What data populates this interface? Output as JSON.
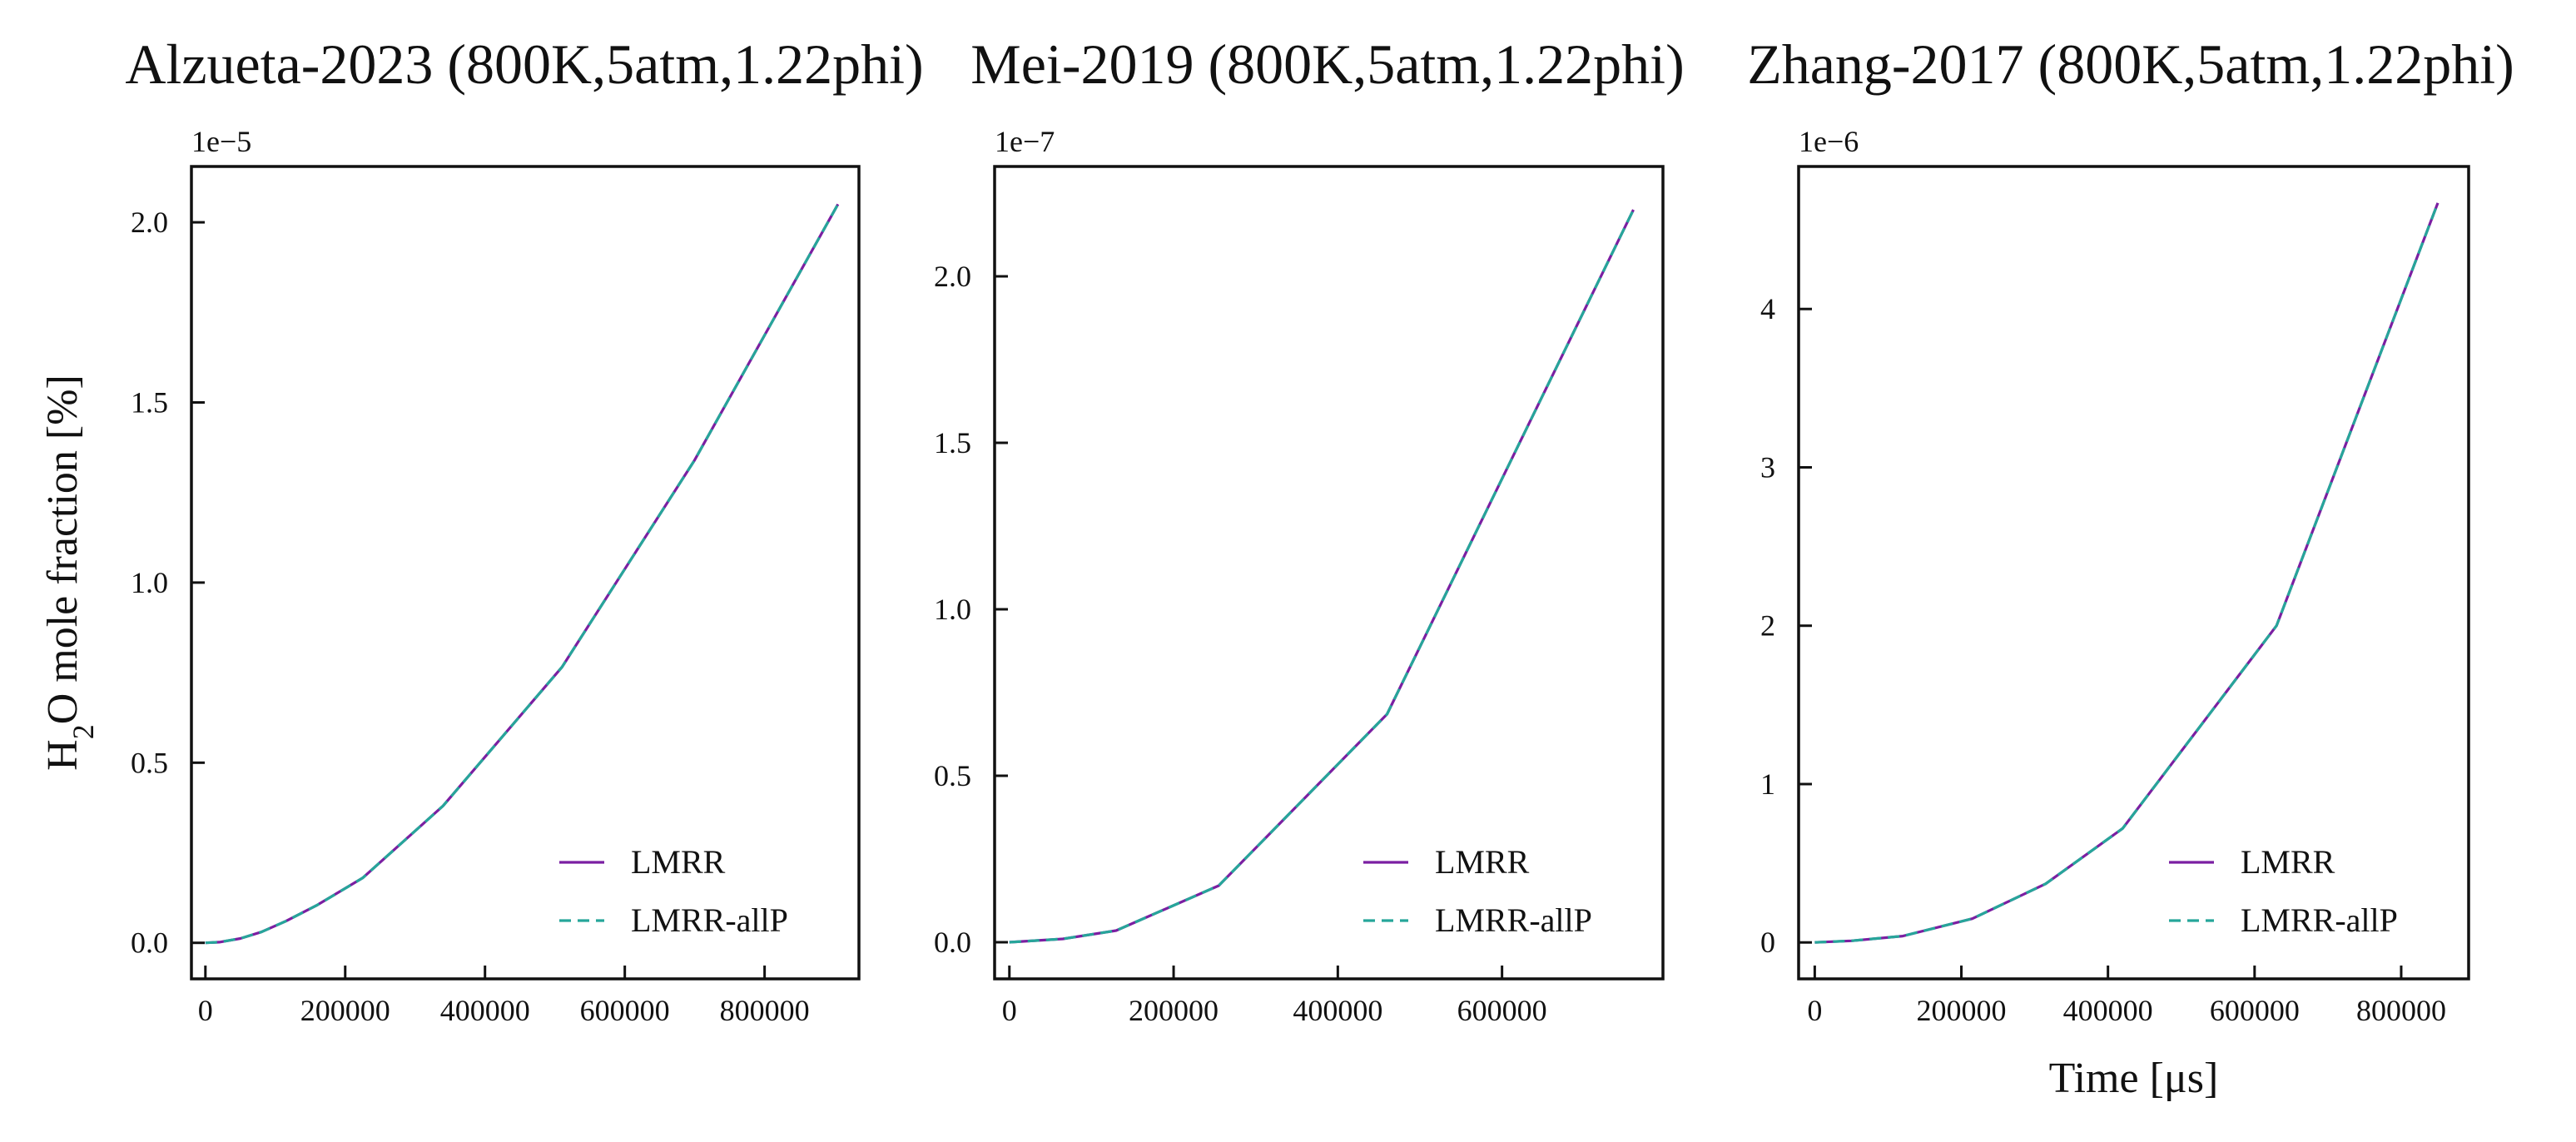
{
  "figure": {
    "shared_ylabel": "H2O mole fraction [%]",
    "shared_xlabel": "Time [μs]"
  },
  "chart_data": [
    {
      "type": "line",
      "title": "Alzueta-2023 (800K,5atm,1.22phi)",
      "xlabel": "",
      "ylabel": "H2O mole fraction [%]",
      "y_offset_label": "1e−5",
      "y_scale_exponent": -5,
      "xlim": [
        -20000,
        935000
      ],
      "ylim": [
        -0.1,
        2.155
      ],
      "xticks": [
        0,
        200000,
        400000,
        600000,
        800000
      ],
      "xtick_labels": [
        "0",
        "200000",
        "400000",
        "600000",
        "800000"
      ],
      "yticks": [
        0.0,
        0.5,
        1.0,
        1.5,
        2.0
      ],
      "ytick_labels": [
        "0.0",
        "0.5",
        "1.0",
        "1.5",
        "2.0"
      ],
      "grid": false,
      "legend_position": "lower-right",
      "series": [
        {
          "name": "LMRR",
          "color": "#7b1fa2",
          "dash": "solid",
          "x": [
            0,
            20000,
            50000,
            80000,
            115000,
            160000,
            225000,
            340000,
            510000,
            700000,
            905000
          ],
          "y": [
            0.0,
            0.002,
            0.012,
            0.03,
            0.06,
            0.105,
            0.18,
            0.38,
            0.765,
            1.34,
            2.05
          ]
        },
        {
          "name": "LMRR-allP",
          "color": "#26a69a",
          "dash": "dashed",
          "x": [
            0,
            20000,
            50000,
            80000,
            115000,
            160000,
            225000,
            340000,
            510000,
            700000,
            905000
          ],
          "y": [
            0.0,
            0.002,
            0.012,
            0.03,
            0.06,
            0.105,
            0.18,
            0.38,
            0.765,
            1.34,
            2.05
          ]
        }
      ]
    },
    {
      "type": "line",
      "title": "Mei-2019 (800K,5atm,1.22phi)",
      "xlabel": "",
      "ylabel": "",
      "y_offset_label": "1e−7",
      "y_scale_exponent": -7,
      "xlim": [
        -18000,
        796000
      ],
      "ylim": [
        -0.11,
        2.33
      ],
      "xticks": [
        0,
        200000,
        400000,
        600000
      ],
      "xtick_labels": [
        "0",
        "200000",
        "400000",
        "600000"
      ],
      "yticks": [
        0.0,
        0.5,
        1.0,
        1.5,
        2.0
      ],
      "ytick_labels": [
        "0.0",
        "0.5",
        "1.0",
        "1.5",
        "2.0"
      ],
      "grid": false,
      "legend_position": "lower-right",
      "series": [
        {
          "name": "LMRR",
          "color": "#7b1fa2",
          "dash": "solid",
          "x": [
            0,
            65000,
            130000,
            255000,
            460000,
            760000
          ],
          "y": [
            0.0,
            0.01,
            0.035,
            0.17,
            0.685,
            2.2
          ]
        },
        {
          "name": "LMRR-allP",
          "color": "#26a69a",
          "dash": "dashed",
          "x": [
            0,
            65000,
            130000,
            255000,
            460000,
            760000
          ],
          "y": [
            0.0,
            0.01,
            0.035,
            0.17,
            0.685,
            2.2
          ]
        }
      ]
    },
    {
      "type": "line",
      "title": "Zhang-2017 (800K,5atm,1.22phi)",
      "xlabel": "Time [μs]",
      "ylabel": "",
      "y_offset_label": "1e−6",
      "y_scale_exponent": -6,
      "xlim": [
        -22000,
        892000
      ],
      "ylim": [
        -0.23,
        4.9
      ],
      "xticks": [
        0,
        200000,
        400000,
        600000,
        800000
      ],
      "xtick_labels": [
        "0",
        "200000",
        "400000",
        "600000",
        "800000"
      ],
      "yticks": [
        0,
        1,
        2,
        3,
        4
      ],
      "ytick_labels": [
        "0",
        "1",
        "2",
        "3",
        "4"
      ],
      "grid": false,
      "legend_position": "lower-right",
      "series": [
        {
          "name": "LMRR",
          "color": "#7b1fa2",
          "dash": "solid",
          "x": [
            0,
            50000,
            120000,
            215000,
            315000,
            420000,
            630000,
            850000
          ],
          "y": [
            0.0,
            0.01,
            0.04,
            0.15,
            0.37,
            0.72,
            2.0,
            4.67
          ]
        },
        {
          "name": "LMRR-allP",
          "color": "#26a69a",
          "dash": "dashed",
          "x": [
            0,
            50000,
            120000,
            215000,
            315000,
            420000,
            630000,
            850000
          ],
          "y": [
            0.0,
            0.01,
            0.04,
            0.15,
            0.37,
            0.72,
            2.0,
            4.67
          ]
        }
      ]
    }
  ]
}
